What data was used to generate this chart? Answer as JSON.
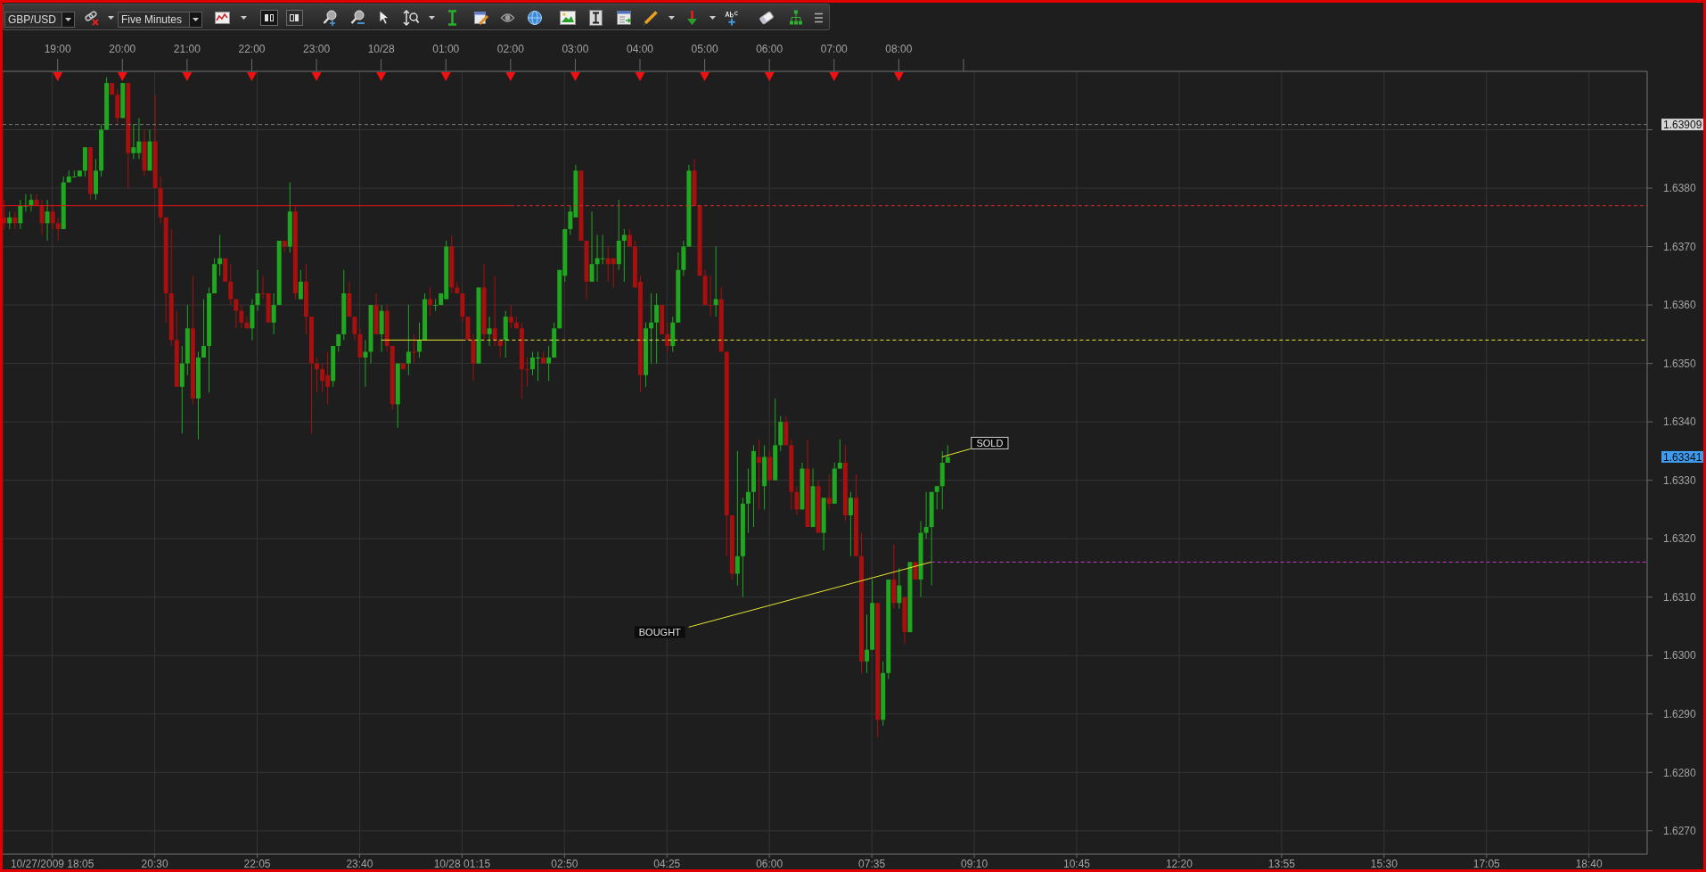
{
  "chart_data": {
    "type": "candlestick",
    "title": "GBP/USD",
    "subtitle": "Five Minutes",
    "x": [
      "2009-10-27T18:10",
      "2009-10-27T18:15",
      "2009-10-27T18:20",
      "2009-10-27T18:25",
      "2009-10-27T18:30",
      "2009-10-27T18:35",
      "2009-10-27T18:40",
      "2009-10-27T18:45",
      "2009-10-27T18:50",
      "2009-10-27T18:55",
      "2009-10-27T19:00",
      "2009-10-27T19:05",
      "2009-10-27T19:10",
      "2009-10-27T19:15",
      "2009-10-27T19:20",
      "2009-10-27T19:25",
      "2009-10-27T19:30",
      "2009-10-27T19:35",
      "2009-10-27T19:40",
      "2009-10-27T19:45",
      "2009-10-27T19:50",
      "2009-10-27T19:55",
      "2009-10-27T20:00",
      "2009-10-27T20:05",
      "2009-10-27T20:10",
      "2009-10-27T20:15",
      "2009-10-27T20:20",
      "2009-10-27T20:25",
      "2009-10-27T20:30",
      "2009-10-27T20:35",
      "2009-10-27T20:40",
      "2009-10-27T20:45",
      "2009-10-27T20:50",
      "2009-10-27T20:55",
      "2009-10-27T21:00",
      "2009-10-27T21:05",
      "2009-10-27T21:10",
      "2009-10-27T21:15",
      "2009-10-27T21:20",
      "2009-10-27T21:25",
      "2009-10-27T21:30",
      "2009-10-27T21:35",
      "2009-10-27T21:40",
      "2009-10-27T21:45",
      "2009-10-27T21:50",
      "2009-10-27T21:55",
      "2009-10-27T22:00",
      "2009-10-27T22:05",
      "2009-10-27T22:10",
      "2009-10-27T22:15",
      "2009-10-27T22:20",
      "2009-10-27T22:25",
      "2009-10-27T22:30",
      "2009-10-27T22:35",
      "2009-10-27T22:40",
      "2009-10-27T22:45",
      "2009-10-27T22:50",
      "2009-10-27T22:55",
      "2009-10-27T23:00",
      "2009-10-27T23:05",
      "2009-10-27T23:10",
      "2009-10-27T23:15",
      "2009-10-27T23:20",
      "2009-10-27T23:25",
      "2009-10-27T23:30",
      "2009-10-27T23:35",
      "2009-10-27T23:40",
      "2009-10-27T23:45",
      "2009-10-27T23:50",
      "2009-10-27T23:55",
      "2009-10-28T00:00",
      "2009-10-28T00:05",
      "2009-10-28T00:10",
      "2009-10-28T00:15",
      "2009-10-28T00:20",
      "2009-10-28T00:25",
      "2009-10-28T00:30",
      "2009-10-28T00:35",
      "2009-10-28T00:40",
      "2009-10-28T00:45",
      "2009-10-28T00:50",
      "2009-10-28T00:55",
      "2009-10-28T01:00",
      "2009-10-28T01:05",
      "2009-10-28T01:10",
      "2009-10-28T01:15",
      "2009-10-28T01:20",
      "2009-10-28T01:25",
      "2009-10-28T01:30",
      "2009-10-28T01:35",
      "2009-10-28T01:40",
      "2009-10-28T01:45",
      "2009-10-28T01:50",
      "2009-10-28T01:55",
      "2009-10-28T02:00",
      "2009-10-28T02:05",
      "2009-10-28T02:10",
      "2009-10-28T02:15",
      "2009-10-28T02:20",
      "2009-10-28T02:25",
      "2009-10-28T02:30",
      "2009-10-28T02:35",
      "2009-10-28T02:40",
      "2009-10-28T02:45",
      "2009-10-28T02:50",
      "2009-10-28T02:55",
      "2009-10-28T03:00",
      "2009-10-28T03:05",
      "2009-10-28T03:10",
      "2009-10-28T03:15",
      "2009-10-28T03:20",
      "2009-10-28T03:25",
      "2009-10-28T03:30",
      "2009-10-28T03:35",
      "2009-10-28T03:40",
      "2009-10-28T03:45",
      "2009-10-28T03:50",
      "2009-10-28T03:55",
      "2009-10-28T04:00",
      "2009-10-28T04:05",
      "2009-10-28T04:10",
      "2009-10-28T04:15",
      "2009-10-28T04:20",
      "2009-10-28T04:25",
      "2009-10-28T04:30",
      "2009-10-28T04:35",
      "2009-10-28T04:40",
      "2009-10-28T04:45",
      "2009-10-28T04:50",
      "2009-10-28T04:55",
      "2009-10-28T05:00",
      "2009-10-28T05:05",
      "2009-10-28T05:10",
      "2009-10-28T05:15",
      "2009-10-28T05:20",
      "2009-10-28T05:25",
      "2009-10-28T05:30",
      "2009-10-28T05:35",
      "2009-10-28T05:40",
      "2009-10-28T05:45",
      "2009-10-28T05:50",
      "2009-10-28T05:55",
      "2009-10-28T06:00",
      "2009-10-28T06:05",
      "2009-10-28T06:10",
      "2009-10-28T06:15",
      "2009-10-28T06:20",
      "2009-10-28T06:25",
      "2009-10-28T06:30",
      "2009-10-28T06:35",
      "2009-10-28T06:40",
      "2009-10-28T06:45",
      "2009-10-28T06:50",
      "2009-10-28T06:55",
      "2009-10-28T07:00",
      "2009-10-28T07:05",
      "2009-10-28T07:10",
      "2009-10-28T07:15",
      "2009-10-28T07:20",
      "2009-10-28T07:25",
      "2009-10-28T07:30",
      "2009-10-28T07:35",
      "2009-10-28T07:40",
      "2009-10-28T07:45",
      "2009-10-28T07:50",
      "2009-10-28T07:55",
      "2009-10-28T08:00",
      "2009-10-28T08:05",
      "2009-10-28T08:10",
      "2009-10-28T08:15",
      "2009-10-28T08:20",
      "2009-10-28T08:25",
      "2009-10-28T08:30",
      "2009-10-28T08:35",
      "2009-10-28T08:40",
      "2009-10-28T08:45"
    ],
    "ohlc": [
      [
        1.6375,
        1.6378,
        1.6373,
        1.6374
      ],
      [
        1.6374,
        1.6376,
        1.6373,
        1.6375
      ],
      [
        1.6375,
        1.6376,
        1.6373,
        1.6374
      ],
      [
        1.6374,
        1.6378,
        1.6373,
        1.6377
      ],
      [
        1.6377,
        1.6379,
        1.6376,
        1.6377
      ],
      [
        1.6377,
        1.6379,
        1.6376,
        1.6378
      ],
      [
        1.6378,
        1.6379,
        1.6377,
        1.6377
      ],
      [
        1.6377,
        1.6378,
        1.6372,
        1.6374
      ],
      [
        1.6374,
        1.6378,
        1.6371,
        1.6376
      ],
      [
        1.6376,
        1.6377,
        1.6373,
        1.6374
      ],
      [
        1.6374,
        1.6375,
        1.6371,
        1.6373
      ],
      [
        1.6373,
        1.6382,
        1.6373,
        1.6381
      ],
      [
        1.6381,
        1.6383,
        1.6381,
        1.6382
      ],
      [
        1.6382,
        1.6383,
        1.6382,
        1.6382
      ],
      [
        1.6382,
        1.6383,
        1.6382,
        1.6383
      ],
      [
        1.6383,
        1.6387,
        1.6382,
        1.6387
      ],
      [
        1.6387,
        1.6387,
        1.6378,
        1.6379
      ],
      [
        1.6379,
        1.6385,
        1.6378,
        1.6383
      ],
      [
        1.6383,
        1.6391,
        1.6382,
        1.639
      ],
      [
        1.639,
        1.6399,
        1.639,
        1.6398
      ],
      [
        1.6398,
        1.6398,
        1.6396,
        1.6396
      ],
      [
        1.6396,
        1.6397,
        1.6391,
        1.6392
      ],
      [
        1.6392,
        1.6398,
        1.6392,
        1.6398
      ],
      [
        1.6398,
        1.6398,
        1.638,
        1.6386
      ],
      [
        1.6386,
        1.6391,
        1.6385,
        1.6387
      ],
      [
        1.6386,
        1.6392,
        1.6385,
        1.6388
      ],
      [
        1.6388,
        1.639,
        1.6382,
        1.6383
      ],
      [
        1.6383,
        1.639,
        1.6383,
        1.6388
      ],
      [
        1.6388,
        1.6396,
        1.638,
        1.638
      ],
      [
        1.638,
        1.6382,
        1.6374,
        1.6375
      ],
      [
        1.6375,
        1.6375,
        1.6357,
        1.6362
      ],
      [
        1.6362,
        1.6373,
        1.6353,
        1.6354
      ],
      [
        1.6354,
        1.6359,
        1.6346,
        1.6346
      ],
      [
        1.6346,
        1.6353,
        1.6338,
        1.635
      ],
      [
        1.635,
        1.636,
        1.6348,
        1.6356
      ],
      [
        1.6356,
        1.6365,
        1.6343,
        1.6344
      ],
      [
        1.6344,
        1.6352,
        1.6337,
        1.6351
      ],
      [
        1.6351,
        1.6361,
        1.6351,
        1.6353
      ],
      [
        1.6353,
        1.6363,
        1.6345,
        1.6362
      ],
      [
        1.6362,
        1.6368,
        1.6362,
        1.6367
      ],
      [
        1.6367,
        1.6372,
        1.6365,
        1.6368
      ],
      [
        1.6368,
        1.6368,
        1.6364,
        1.6364
      ],
      [
        1.6364,
        1.6367,
        1.636,
        1.6361
      ],
      [
        1.6361,
        1.6361,
        1.6356,
        1.6359
      ],
      [
        1.6359,
        1.636,
        1.6356,
        1.6357
      ],
      [
        1.6357,
        1.6358,
        1.6356,
        1.6356
      ],
      [
        1.6356,
        1.6361,
        1.6354,
        1.636
      ],
      [
        1.636,
        1.6366,
        1.6359,
        1.6362
      ],
      [
        1.6362,
        1.6365,
        1.6361,
        1.6362
      ],
      [
        1.6362,
        1.6362,
        1.6357,
        1.6357
      ],
      [
        1.6357,
        1.6362,
        1.6355,
        1.636
      ],
      [
        1.636,
        1.6371,
        1.636,
        1.6371
      ],
      [
        1.6371,
        1.6371,
        1.6369,
        1.637
      ],
      [
        1.637,
        1.6381,
        1.6369,
        1.6376
      ],
      [
        1.6376,
        1.6377,
        1.6361,
        1.6362
      ],
      [
        1.6361,
        1.6366,
        1.6361,
        1.6364
      ],
      [
        1.6364,
        1.6367,
        1.6355,
        1.6358
      ],
      [
        1.6358,
        1.6358,
        1.6338,
        1.635
      ],
      [
        1.635,
        1.6351,
        1.6345,
        1.6349
      ],
      [
        1.6349,
        1.635,
        1.6345,
        1.6347
      ],
      [
        1.6348,
        1.6352,
        1.6343,
        1.6346
      ],
      [
        1.6347,
        1.6353,
        1.6346,
        1.6353
      ],
      [
        1.6353,
        1.6355,
        1.6352,
        1.6355
      ],
      [
        1.6355,
        1.6366,
        1.6354,
        1.6362
      ],
      [
        1.6362,
        1.6364,
        1.6358,
        1.6358
      ],
      [
        1.6358,
        1.6358,
        1.6354,
        1.6355
      ],
      [
        1.6355,
        1.6356,
        1.6351,
        1.6351
      ],
      [
        1.6351,
        1.6354,
        1.6346,
        1.6352
      ],
      [
        1.6352,
        1.636,
        1.635,
        1.636
      ],
      [
        1.636,
        1.6362,
        1.6355,
        1.6355
      ],
      [
        1.6355,
        1.636,
        1.6352,
        1.6359
      ],
      [
        1.6359,
        1.636,
        1.6352,
        1.6353
      ],
      [
        1.6353,
        1.6353,
        1.6342,
        1.6343
      ],
      [
        1.6343,
        1.635,
        1.6339,
        1.635
      ],
      [
        1.635,
        1.635,
        1.6349,
        1.6349
      ],
      [
        1.635,
        1.636,
        1.6348,
        1.6352
      ],
      [
        1.6352,
        1.6355,
        1.635,
        1.6352
      ],
      [
        1.6352,
        1.6357,
        1.6351,
        1.6354
      ],
      [
        1.6354,
        1.6362,
        1.6354,
        1.6361
      ],
      [
        1.6361,
        1.6363,
        1.6358,
        1.636
      ],
      [
        1.636,
        1.6361,
        1.6359,
        1.636
      ],
      [
        1.636,
        1.6362,
        1.636,
        1.6362
      ],
      [
        1.6361,
        1.6371,
        1.6361,
        1.637
      ],
      [
        1.637,
        1.6372,
        1.6362,
        1.6363
      ],
      [
        1.6363,
        1.6364,
        1.6362,
        1.6362
      ],
      [
        1.6362,
        1.6362,
        1.6357,
        1.6358
      ],
      [
        1.6358,
        1.6358,
        1.6354,
        1.6354
      ],
      [
        1.6354,
        1.6355,
        1.6347,
        1.635
      ],
      [
        1.635,
        1.6363,
        1.635,
        1.6363
      ],
      [
        1.6363,
        1.6367,
        1.6354,
        1.6355
      ],
      [
        1.6355,
        1.6358,
        1.6353,
        1.6356
      ],
      [
        1.6356,
        1.6365,
        1.6353,
        1.6354
      ],
      [
        1.6354,
        1.6354,
        1.6351,
        1.6353
      ],
      [
        1.6354,
        1.6359,
        1.6351,
        1.6358
      ],
      [
        1.6358,
        1.636,
        1.6356,
        1.6357
      ],
      [
        1.6357,
        1.6358,
        1.6356,
        1.6356
      ],
      [
        1.6356,
        1.6357,
        1.6344,
        1.6349
      ],
      [
        1.6349,
        1.6351,
        1.6346,
        1.6349
      ],
      [
        1.6349,
        1.6352,
        1.6348,
        1.6351
      ],
      [
        1.6351,
        1.6352,
        1.6347,
        1.6351
      ],
      [
        1.6351,
        1.6352,
        1.635,
        1.635
      ],
      [
        1.635,
        1.6353,
        1.6347,
        1.6351
      ],
      [
        1.6351,
        1.6357,
        1.6351,
        1.6356
      ],
      [
        1.6356,
        1.6366,
        1.6356,
        1.6366
      ],
      [
        1.6365,
        1.6373,
        1.6364,
        1.6373
      ],
      [
        1.6373,
        1.6377,
        1.6372,
        1.6376
      ],
      [
        1.6375,
        1.6384,
        1.6375,
        1.6383
      ],
      [
        1.6383,
        1.6383,
        1.6371,
        1.6371
      ],
      [
        1.6371,
        1.6371,
        1.6361,
        1.6364
      ],
      [
        1.6364,
        1.6376,
        1.6364,
        1.6367
      ],
      [
        1.6367,
        1.6372,
        1.6364,
        1.6368
      ],
      [
        1.6368,
        1.6372,
        1.6367,
        1.6368
      ],
      [
        1.6368,
        1.637,
        1.6364,
        1.6367
      ],
      [
        1.6368,
        1.6368,
        1.6363,
        1.6367
      ],
      [
        1.6367,
        1.6378,
        1.6366,
        1.6371
      ],
      [
        1.6371,
        1.6373,
        1.6364,
        1.6372
      ],
      [
        1.6372,
        1.6373,
        1.637,
        1.637
      ],
      [
        1.637,
        1.6371,
        1.6363,
        1.6363
      ],
      [
        1.6364,
        1.6365,
        1.6345,
        1.6348
      ],
      [
        1.6348,
        1.6357,
        1.6346,
        1.6356
      ],
      [
        1.6356,
        1.6362,
        1.635,
        1.6357
      ],
      [
        1.6357,
        1.6362,
        1.635,
        1.636
      ],
      [
        1.636,
        1.636,
        1.6355,
        1.6355
      ],
      [
        1.6355,
        1.6357,
        1.6352,
        1.6353
      ],
      [
        1.6353,
        1.6358,
        1.6352,
        1.6357
      ],
      [
        1.6357,
        1.6369,
        1.6357,
        1.6366
      ],
      [
        1.6366,
        1.6371,
        1.6365,
        1.637
      ],
      [
        1.637,
        1.6384,
        1.637,
        1.6383
      ],
      [
        1.6383,
        1.6385,
        1.6377,
        1.6377
      ],
      [
        1.6377,
        1.6377,
        1.6365,
        1.6365
      ],
      [
        1.6365,
        1.6366,
        1.636,
        1.636
      ],
      [
        1.636,
        1.6365,
        1.6358,
        1.636
      ],
      [
        1.636,
        1.637,
        1.6358,
        1.6361
      ],
      [
        1.6361,
        1.6363,
        1.6352,
        1.6352
      ],
      [
        1.6352,
        1.6352,
        1.6317,
        1.6324
      ],
      [
        1.6324,
        1.6324,
        1.6313,
        1.6314
      ],
      [
        1.6314,
        1.6335,
        1.6312,
        1.6317
      ],
      [
        1.6317,
        1.6327,
        1.631,
        1.6326
      ],
      [
        1.6326,
        1.6332,
        1.6321,
        1.6328
      ],
      [
        1.6328,
        1.6336,
        1.6322,
        1.6335
      ],
      [
        1.6334,
        1.6337,
        1.6325,
        1.6333
      ],
      [
        1.6329,
        1.6336,
        1.6325,
        1.6334
      ],
      [
        1.6334,
        1.6335,
        1.633,
        1.633
      ],
      [
        1.633,
        1.6344,
        1.633,
        1.6336
      ],
      [
        1.6336,
        1.6341,
        1.6335,
        1.634
      ],
      [
        1.634,
        1.6341,
        1.6336,
        1.6336
      ],
      [
        1.6336,
        1.6337,
        1.6325,
        1.6328
      ],
      [
        1.6328,
        1.6329,
        1.6324,
        1.6325
      ],
      [
        1.6325,
        1.6333,
        1.6325,
        1.6332
      ],
      [
        1.6332,
        1.6337,
        1.6322,
        1.6322
      ],
      [
        1.6322,
        1.6332,
        1.6322,
        1.6329
      ],
      [
        1.6329,
        1.633,
        1.6321,
        1.6321
      ],
      [
        1.6321,
        1.6327,
        1.6318,
        1.6327
      ],
      [
        1.6327,
        1.6331,
        1.6325,
        1.6326
      ],
      [
        1.6326,
        1.6333,
        1.6326,
        1.6332
      ],
      [
        1.6332,
        1.6337,
        1.6332,
        1.6333
      ],
      [
        1.6333,
        1.6336,
        1.6323,
        1.6324
      ],
      [
        1.6324,
        1.6328,
        1.6317,
        1.6327
      ],
      [
        1.6327,
        1.6331,
        1.6317,
        1.6317
      ],
      [
        1.6317,
        1.6321,
        1.6297,
        1.6299
      ],
      [
        1.6299,
        1.6307,
        1.6297,
        1.6301
      ],
      [
        1.6301,
        1.6313,
        1.6301,
        1.6309
      ],
      [
        1.6309,
        1.6309,
        1.6286,
        1.6289
      ],
      [
        1.6289,
        1.6299,
        1.6288,
        1.6297
      ],
      [
        1.6297,
        1.6313,
        1.6296,
        1.6313
      ],
      [
        1.6313,
        1.6319,
        1.6308,
        1.6309
      ],
      [
        1.6309,
        1.6315,
        1.6308,
        1.6312
      ],
      [
        1.631,
        1.631,
        1.6302,
        1.6304
      ],
      [
        1.6304,
        1.6316,
        1.6304,
        1.6316
      ],
      [
        1.6316,
        1.6316,
        1.6313,
        1.6313
      ],
      [
        1.6313,
        1.6323,
        1.631,
        1.6321
      ],
      [
        1.6321,
        1.6328,
        1.632,
        1.6322
      ],
      [
        1.6322,
        1.6328,
        1.6312,
        1.6328
      ],
      [
        1.6328,
        1.6329,
        1.6325,
        1.6329
      ],
      [
        1.6329,
        1.6335,
        1.6325,
        1.6333
      ],
      [
        1.6333,
        1.6336,
        1.6333,
        1.6334
      ]
    ],
    "colors": [
      "#a80f0f",
      "#1fa81f",
      "#a80f0f",
      "#1fa81f",
      "#1fa81f",
      "#1fa81f",
      "#a80f0f",
      "#a80f0f",
      "#1fa81f",
      "#a80f0f",
      "#a80f0f",
      "#1fa81f",
      "#1fa81f",
      "#1fa81f",
      "#1fa81f",
      "#1fa81f",
      "#a80f0f",
      "#1fa81f",
      "#1fa81f",
      "#1fa81f",
      "#a80f0f",
      "#a80f0f",
      "#1fa81f",
      "#a80f0f",
      "#1fa81f",
      "#1fa81f",
      "#a80f0f",
      "#1fa81f",
      "#a80f0f",
      "#a80f0f",
      "#a80f0f",
      "#a80f0f",
      "#a80f0f",
      "#1fa81f",
      "#1fa81f",
      "#a80f0f",
      "#1fa81f",
      "#1fa81f",
      "#1fa81f",
      "#1fa81f",
      "#1fa81f",
      "#a80f0f",
      "#a80f0f",
      "#a80f0f",
      "#a80f0f",
      "#a80f0f",
      "#1fa81f",
      "#1fa81f",
      "#a80f0f",
      "#a80f0f",
      "#1fa81f",
      "#1fa81f",
      "#a80f0f",
      "#1fa81f",
      "#a80f0f",
      "#1fa81f",
      "#a80f0f",
      "#a80f0f",
      "#a80f0f",
      "#a80f0f",
      "#a80f0f",
      "#1fa81f",
      "#1fa81f",
      "#1fa81f",
      "#a80f0f",
      "#a80f0f",
      "#a80f0f",
      "#1fa81f",
      "#1fa81f",
      "#a80f0f",
      "#1fa81f",
      "#a80f0f",
      "#a80f0f",
      "#1fa81f",
      "#a80f0f",
      "#1fa81f",
      "#a80f0f",
      "#1fa81f",
      "#1fa81f",
      "#a80f0f",
      "#1fa81f",
      "#1fa81f",
      "#1fa81f",
      "#a80f0f",
      "#a80f0f",
      "#a80f0f",
      "#a80f0f",
      "#a80f0f",
      "#1fa81f",
      "#a80f0f",
      "#1fa81f",
      "#a80f0f",
      "#a80f0f",
      "#1fa81f",
      "#a80f0f",
      "#a80f0f",
      "#a80f0f",
      "#a80f0f",
      "#1fa81f",
      "#1fa81f",
      "#a80f0f",
      "#1fa81f",
      "#1fa81f",
      "#1fa81f",
      "#1fa81f",
      "#1fa81f",
      "#1fa81f",
      "#a80f0f",
      "#a80f0f",
      "#1fa81f",
      "#1fa81f",
      "#1fa81f",
      "#a80f0f",
      "#a80f0f",
      "#1fa81f",
      "#1fa81f",
      "#a80f0f",
      "#a80f0f",
      "#a80f0f",
      "#1fa81f",
      "#1fa81f",
      "#1fa81f",
      "#a80f0f",
      "#a80f0f",
      "#1fa81f",
      "#1fa81f",
      "#1fa81f",
      "#1fa81f",
      "#a80f0f",
      "#a80f0f",
      "#a80f0f",
      "#a80f0f",
      "#1fa81f",
      "#a80f0f",
      "#a80f0f",
      "#a80f0f",
      "#1fa81f",
      "#1fa81f",
      "#1fa81f",
      "#1fa81f",
      "#a80f0f",
      "#1fa81f",
      "#a80f0f",
      "#1fa81f",
      "#1fa81f",
      "#a80f0f",
      "#a80f0f",
      "#a80f0f",
      "#1fa81f",
      "#a80f0f",
      "#1fa81f",
      "#a80f0f",
      "#1fa81f",
      "#a80f0f",
      "#1fa81f",
      "#1fa81f",
      "#a80f0f",
      "#1fa81f",
      "#a80f0f",
      "#a80f0f",
      "#1fa81f",
      "#1fa81f",
      "#a80f0f",
      "#1fa81f",
      "#1fa81f",
      "#a80f0f",
      "#1fa81f",
      "#a80f0f",
      "#1fa81f",
      "#a80f0f",
      "#1fa81f",
      "#1fa81f",
      "#1fa81f",
      "#1fa81f",
      "#1fa81f",
      "#1fa81f"
    ],
    "series": [
      {
        "type": "line",
        "x": [
          "2009-10-27T18:09",
          "2009-10-28T02:00"
        ],
        "values": [
          1.6377,
          1.6377
        ],
        "color": "#e01414",
        "line_style": "solid"
      },
      {
        "type": "line",
        "x": [
          "2009-10-28T02:00",
          "2009-10-28T19:34"
        ],
        "values": [
          1.6377,
          1.6377
        ],
        "color": "#d42a2a",
        "line_style": "dashed"
      },
      {
        "type": "line",
        "x": [
          "2009-10-28T00:00",
          "2009-10-28T01:15"
        ],
        "values": [
          1.6354,
          1.6354
        ],
        "color": "#e6e632",
        "line_style": "solid"
      },
      {
        "type": "line",
        "x": [
          "2009-10-28T01:15",
          "2009-10-28T19:34"
        ],
        "values": [
          1.6354,
          1.6354
        ],
        "color": "#e6e632",
        "line_style": "dashed"
      },
      {
        "type": "line",
        "x": [
          "2009-10-28T08:30",
          "2009-10-28T19:34"
        ],
        "values": [
          1.6316,
          1.6316
        ],
        "color": "#c83cc8",
        "line_style": "dashed"
      }
    ],
    "xlim": [
      "2009-10-27T18:09",
      "2009-10-28T19:34"
    ],
    "xticks": [
      {
        "value": "2009-10-27T18:55",
        "label": "10/27/2009 18:05"
      },
      {
        "value": "2009-10-27T20:30",
        "label": "20:30"
      },
      {
        "value": "2009-10-27T22:05",
        "label": "22:05"
      },
      {
        "value": "2009-10-27T23:40",
        "label": "23:40"
      },
      {
        "value": "2009-10-28T01:15",
        "label": "10/28 01:15"
      },
      {
        "value": "2009-10-28T02:50",
        "label": "02:50"
      },
      {
        "value": "2009-10-28T04:25",
        "label": "04:25"
      },
      {
        "value": "2009-10-28T06:00",
        "label": "06:00"
      },
      {
        "value": "2009-10-28T07:35",
        "label": "07:35"
      },
      {
        "value": "2009-10-28T09:10",
        "label": "09:10"
      },
      {
        "value": "2009-10-28T10:45",
        "label": "10:45"
      },
      {
        "value": "2009-10-28T12:20",
        "label": "12:20"
      },
      {
        "value": "2009-10-28T13:55",
        "label": "13:55"
      },
      {
        "value": "2009-10-28T15:30",
        "label": "15:30"
      },
      {
        "value": "2009-10-28T17:05",
        "label": "17:05"
      },
      {
        "value": "2009-10-28T18:40",
        "label": "18:40"
      }
    ],
    "x2lim": [
      "2009-10-27T18:09",
      "2009-10-28T19:34"
    ],
    "x2ticks": [
      {
        "value": "2009-10-27T19:00",
        "label": "19:00"
      },
      {
        "value": "2009-10-27T20:00",
        "label": "20:00"
      },
      {
        "value": "2009-10-27T21:00",
        "label": "21:00"
      },
      {
        "value": "2009-10-27T22:00",
        "label": "22:00"
      },
      {
        "value": "2009-10-27T23:00",
        "label": "23:00"
      },
      {
        "value": "2009-10-28T00:00",
        "label": "10/28"
      },
      {
        "value": "2009-10-28T01:00",
        "label": "01:00"
      },
      {
        "value": "2009-10-28T02:00",
        "label": "02:00"
      },
      {
        "value": "2009-10-28T03:00",
        "label": "03:00"
      },
      {
        "value": "2009-10-28T04:00",
        "label": "04:00"
      },
      {
        "value": "2009-10-28T05:00",
        "label": "05:00"
      },
      {
        "value": "2009-10-28T06:00",
        "label": "06:00"
      },
      {
        "value": "2009-10-28T07:00",
        "label": "07:00"
      },
      {
        "value": "2009-10-28T08:00",
        "label": "08:00"
      },
      {
        "value": "2009-10-28T09:00",
        "label": null
      }
    ],
    "ylim": [
      1.6266,
      1.64
    ],
    "yticks": [
      {
        "value": 1.627,
        "label": "1.6270"
      },
      {
        "value": 1.628,
        "label": "1.6280"
      },
      {
        "value": 1.629,
        "label": "1.6290"
      },
      {
        "value": 1.63,
        "label": "1.6300"
      },
      {
        "value": 1.631,
        "label": "1.6310"
      },
      {
        "value": 1.632,
        "label": "1.6320"
      },
      {
        "value": 1.633,
        "label": "1.6330"
      },
      {
        "value": 1.634,
        "label": "1.6340"
      },
      {
        "value": 1.635,
        "label": "1.6350"
      },
      {
        "value": 1.636,
        "label": "1.6360"
      },
      {
        "value": 1.637,
        "label": "1.6370"
      },
      {
        "value": 1.638,
        "label": "1.6380"
      },
      {
        "value": 1.639,
        "label": null
      }
    ],
    "grid": true,
    "ref_lines": [
      {
        "axis": "y",
        "value": 1.63909,
        "label": "1.63909",
        "color": "#7c7c7c",
        "line_style": "dashed"
      }
    ],
    "annotations": [
      {
        "text": "BOUGHT",
        "x": "2009-10-28T08:30",
        "y": 1.6316
      },
      {
        "text": "SOLD",
        "x": "2009-10-28T08:40",
        "y": 1.6334
      },
      "1.63341"
    ]
  }
}
